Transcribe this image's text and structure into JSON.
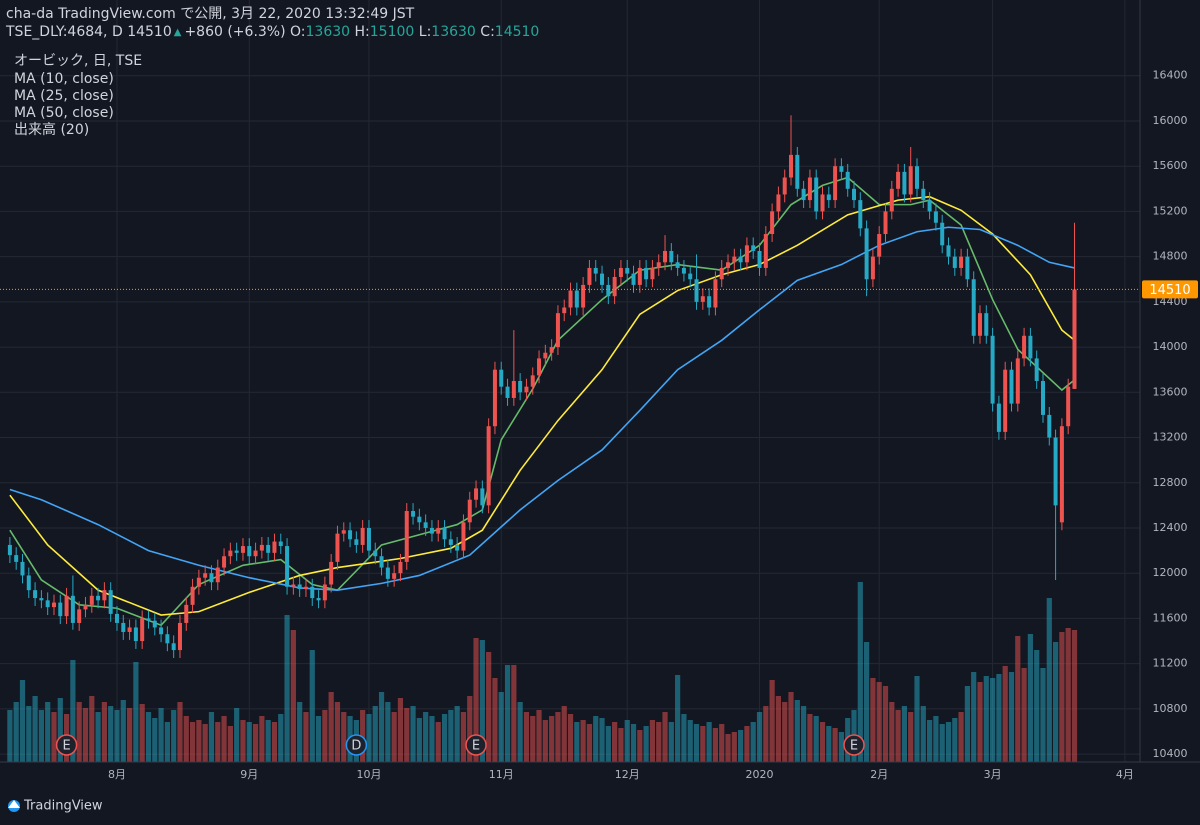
{
  "header": {
    "publisher": "cha-da TradingView.com で公開, 3月 22, 2020 13:32:49 JST",
    "symbol": "TSE_DLY:4684, D",
    "arrow": "▲",
    "change": "+860 (+6.3%)",
    "o_label": "O:",
    "h_label": "H:",
    "l_label": "L:",
    "c_label": "C:"
  },
  "footer": {
    "brand": "TradingView"
  },
  "chart_data": {
    "type": "candlestick",
    "name": "オービック, 日, TSE",
    "volume_name": "出来高 (20)",
    "up_color": "#ef5350",
    "down_color": "#25a9c5",
    "last_price_color": "#ff9800",
    "grid": true,
    "xlim": [
      -0.3,
      179.4
    ],
    "ylim": [
      10330,
      17070
    ],
    "volume_lim": [
      0,
      1000
    ],
    "yticks": [
      10400,
      10800,
      11200,
      11600,
      12000,
      12400,
      12800,
      13200,
      13600,
      14000,
      14400,
      14800,
      15200,
      15600,
      16000,
      16400
    ],
    "xticks": [
      {
        "value": 17,
        "label": "8月"
      },
      {
        "value": 38,
        "label": "9月"
      },
      {
        "value": 57,
        "label": "10月"
      },
      {
        "value": 78,
        "label": "11月"
      },
      {
        "value": 98,
        "label": "12月"
      },
      {
        "value": 119,
        "label": "2020"
      },
      {
        "value": 138,
        "label": "2月"
      },
      {
        "value": 156,
        "label": "3月"
      },
      {
        "value": 177,
        "label": "4月"
      }
    ],
    "open": [
      12250,
      12160,
      12100,
      11980,
      11850,
      11780,
      11760,
      11700,
      11740,
      11620,
      11800,
      11560,
      11680,
      11720,
      11800,
      11760,
      11850,
      11640,
      11560,
      11480,
      11520,
      11400,
      11600,
      11580,
      11520,
      11460,
      11380,
      11320,
      11560,
      11720,
      11880,
      11960,
      12000,
      11920,
      12050,
      12150,
      12200,
      12180,
      12240,
      12150,
      12200,
      12250,
      12180,
      12280,
      12240,
      11880,
      11900,
      11860,
      11880,
      11780,
      11760,
      11900,
      12100,
      12350,
      12380,
      12300,
      12250,
      12400,
      12200,
      12150,
      12050,
      11950,
      12000,
      12100,
      12550,
      12500,
      12450,
      12400,
      12350,
      12400,
      12300,
      12250,
      12200,
      12450,
      12650,
      12750,
      12600,
      13300,
      13800,
      13650,
      13550,
      13700,
      13600,
      13650,
      13750,
      13900,
      13950,
      14000,
      14300,
      14350,
      14500,
      14350,
      14550,
      14700,
      14650,
      14550,
      14450,
      14620,
      14700,
      14650,
      14550,
      14700,
      14600,
      14700,
      14750,
      14850,
      14750,
      14700,
      14650,
      14600,
      14400,
      14450,
      14350,
      14600,
      14700,
      14750,
      14800,
      14750,
      14900,
      14850,
      14700,
      15000,
      15200,
      15350,
      15500,
      15700,
      15400,
      15300,
      15500,
      15200,
      15350,
      15300,
      15600,
      15550,
      15400,
      15300,
      15050,
      14600,
      14800,
      15000,
      15200,
      15400,
      15550,
      15350,
      15600,
      15400,
      15300,
      15200,
      15100,
      14900,
      14800,
      14700,
      14800,
      14600,
      14100,
      14300,
      14100,
      13500,
      13250,
      13800,
      13500,
      13900,
      14100,
      13900,
      13700,
      13400,
      13200,
      12450,
      13300,
      13630
    ],
    "high": [
      12320,
      12230,
      12170,
      12050,
      11920,
      11850,
      11830,
      11810,
      11810,
      11870,
      11980,
      11750,
      11790,
      11870,
      11870,
      11920,
      11920,
      11710,
      11630,
      11590,
      11590,
      11670,
      11670,
      11650,
      11590,
      11530,
      11450,
      11630,
      11790,
      11950,
      12030,
      12070,
      12070,
      12120,
      12220,
      12270,
      12270,
      12310,
      12310,
      12270,
      12320,
      12320,
      12350,
      12350,
      12310,
      11970,
      11970,
      11950,
      11950,
      11850,
      11970,
      12170,
      12420,
      12450,
      12450,
      12370,
      12470,
      12470,
      12270,
      12220,
      12120,
      12070,
      12170,
      12620,
      12620,
      12570,
      12520,
      12470,
      12470,
      12470,
      12370,
      12320,
      12520,
      12720,
      12820,
      12820,
      13370,
      13870,
      13870,
      13720,
      14150,
      13770,
      13720,
      13820,
      13970,
      14020,
      14070,
      14370,
      14420,
      14570,
      14570,
      14620,
      14770,
      14770,
      14720,
      14620,
      14690,
      14770,
      14770,
      14720,
      14770,
      14770,
      14770,
      14820,
      14990,
      14920,
      14820,
      14770,
      14720,
      14820,
      14520,
      14520,
      14670,
      14770,
      14820,
      14870,
      14870,
      14970,
      14970,
      14920,
      15070,
      15270,
      15420,
      15570,
      16050,
      15770,
      15470,
      15570,
      15570,
      15420,
      15420,
      15670,
      15670,
      15620,
      15470,
      15370,
      15120,
      14870,
      15070,
      15270,
      15470,
      15620,
      15620,
      15770,
      15670,
      15470,
      15370,
      15270,
      15170,
      14970,
      14870,
      14870,
      14870,
      14670,
      14370,
      14370,
      14170,
      13570,
      13870,
      13870,
      13970,
      14170,
      14170,
      13970,
      13770,
      13470,
      13270,
      13370,
      13720,
      15100
    ],
    "low": [
      12090,
      12030,
      11910,
      11780,
      11710,
      11690,
      11630,
      11630,
      11550,
      11550,
      11500,
      11490,
      11610,
      11650,
      11690,
      11690,
      11570,
      11490,
      11410,
      11410,
      11330,
      11330,
      11510,
      11450,
      11390,
      11310,
      11250,
      11250,
      11490,
      11650,
      11810,
      11890,
      11850,
      11850,
      11980,
      12080,
      12110,
      12110,
      12080,
      12080,
      12130,
      12110,
      12110,
      12170,
      11810,
      11810,
      11790,
      11790,
      11710,
      11690,
      11690,
      11830,
      12030,
      12280,
      12230,
      12180,
      12180,
      12130,
      12080,
      11980,
      11880,
      11880,
      11930,
      12030,
      12430,
      12380,
      12330,
      12280,
      12280,
      12230,
      12180,
      12130,
      12130,
      12380,
      12580,
      12530,
      12530,
      13230,
      13580,
      13480,
      13480,
      13530,
      13530,
      13580,
      13680,
      13830,
      13880,
      13930,
      14230,
      14280,
      14280,
      14280,
      14480,
      14580,
      14480,
      14380,
      14380,
      14550,
      14580,
      14480,
      14480,
      14530,
      14530,
      14630,
      14680,
      14680,
      14630,
      14580,
      14530,
      14330,
      14330,
      14280,
      14280,
      14530,
      14630,
      14680,
      14680,
      14680,
      14780,
      14630,
      14630,
      14930,
      15130,
      15280,
      15430,
      15330,
      15230,
      15230,
      15130,
      15130,
      15230,
      15230,
      15480,
      15330,
      15230,
      14980,
      14450,
      14530,
      14730,
      14930,
      15130,
      15330,
      15280,
      15280,
      15330,
      15230,
      15130,
      15030,
      14830,
      14730,
      14630,
      14630,
      14530,
      14030,
      14030,
      14030,
      13430,
      13180,
      13180,
      13430,
      13430,
      13830,
      13830,
      13630,
      13330,
      13130,
      11940,
      12380,
      13230,
      13630
    ],
    "close": [
      12160,
      12100,
      11980,
      11850,
      11780,
      11760,
      11700,
      11740,
      11620,
      11800,
      11560,
      11680,
      11720,
      11800,
      11760,
      11850,
      11640,
      11560,
      11480,
      11520,
      11400,
      11600,
      11580,
      11520,
      11460,
      11380,
      11320,
      11560,
      11720,
      11880,
      11960,
      12000,
      11920,
      12050,
      12150,
      12200,
      12180,
      12240,
      12150,
      12200,
      12250,
      12180,
      12280,
      12240,
      11880,
      11900,
      11860,
      11880,
      11780,
      11760,
      11900,
      12100,
      12350,
      12380,
      12300,
      12250,
      12400,
      12200,
      12150,
      12050,
      11950,
      12000,
      12100,
      12550,
      12500,
      12450,
      12400,
      12350,
      12400,
      12300,
      12250,
      12200,
      12450,
      12650,
      12750,
      12600,
      13300,
      13800,
      13650,
      13550,
      13700,
      13600,
      13650,
      13750,
      13900,
      13950,
      14000,
      14300,
      14350,
      14500,
      14350,
      14550,
      14700,
      14650,
      14550,
      14450,
      14620,
      14700,
      14650,
      14550,
      14700,
      14600,
      14700,
      14750,
      14850,
      14750,
      14700,
      14650,
      14600,
      14400,
      14450,
      14350,
      14600,
      14700,
      14750,
      14800,
      14750,
      14900,
      14850,
      14700,
      15000,
      15200,
      15350,
      15500,
      15700,
      15400,
      15300,
      15500,
      15200,
      15350,
      15300,
      15600,
      15550,
      15400,
      15300,
      15050,
      14600,
      14800,
      15000,
      15200,
      15400,
      15550,
      15350,
      15600,
      15400,
      15300,
      15200,
      15100,
      14900,
      14800,
      14700,
      14800,
      14600,
      14100,
      14300,
      14100,
      13500,
      13250,
      13800,
      13500,
      13900,
      14100,
      13900,
      13700,
      13400,
      13200,
      12600,
      13300,
      13650,
      14510
    ],
    "volume": [
      260,
      300,
      410,
      280,
      330,
      260,
      300,
      250,
      320,
      240,
      510,
      300,
      270,
      330,
      250,
      300,
      280,
      260,
      310,
      270,
      500,
      290,
      250,
      220,
      270,
      200,
      260,
      300,
      230,
      200,
      210,
      190,
      250,
      200,
      230,
      180,
      270,
      210,
      200,
      190,
      230,
      210,
      200,
      240,
      735,
      660,
      300,
      250,
      560,
      230,
      260,
      350,
      300,
      250,
      230,
      210,
      260,
      240,
      280,
      350,
      300,
      250,
      320,
      270,
      280,
      220,
      250,
      230,
      200,
      240,
      260,
      280,
      250,
      330,
      620,
      610,
      550,
      420,
      350,
      485,
      485,
      300,
      250,
      230,
      260,
      210,
      230,
      250,
      280,
      240,
      200,
      210,
      190,
      230,
      220,
      180,
      200,
      170,
      210,
      190,
      160,
      180,
      210,
      200,
      250,
      200,
      435,
      240,
      210,
      190,
      180,
      200,
      170,
      190,
      140,
      150,
      160,
      180,
      200,
      250,
      280,
      410,
      330,
      300,
      350,
      310,
      280,
      240,
      230,
      200,
      180,
      170,
      150,
      220,
      260,
      900,
      600,
      420,
      400,
      380,
      300,
      260,
      280,
      250,
      430,
      280,
      210,
      230,
      190,
      200,
      220,
      250,
      380,
      450,
      400,
      430,
      420,
      440,
      480,
      450,
      630,
      470,
      640,
      560,
      470,
      820,
      600,
      650,
      670,
      660
    ],
    "series": [
      {
        "name": "MA (10, close)",
        "color": "#66bb6a",
        "x": [
          0,
          5,
          11,
          17,
          24,
          30,
          37,
          43,
          48,
          52,
          59,
          65,
          71,
          75,
          78,
          83,
          87,
          94,
          100,
          106,
          113,
          119,
          124,
          129,
          133,
          138,
          143,
          146,
          151,
          156,
          160,
          167,
          169
        ],
        "values": [
          12380,
          11940,
          11720,
          11690,
          11540,
          11900,
          12070,
          12120,
          11900,
          11850,
          12250,
          12340,
          12430,
          12560,
          13180,
          13630,
          14060,
          14420,
          14680,
          14730,
          14680,
          14900,
          15260,
          15430,
          15500,
          15260,
          15260,
          15300,
          15080,
          14420,
          13980,
          13620,
          13710
        ]
      },
      {
        "name": "MA (25, close)",
        "color": "#ffeb3b",
        "x": [
          0,
          6,
          14,
          24,
          30,
          38,
          46,
          52,
          62,
          70,
          75,
          81,
          87,
          94,
          100,
          106,
          113,
          119,
          125,
          133,
          141,
          146,
          151,
          156,
          162,
          167,
          169
        ],
        "values": [
          12690,
          12250,
          11850,
          11630,
          11660,
          11830,
          11980,
          12050,
          12130,
          12220,
          12380,
          12910,
          13350,
          13800,
          14290,
          14500,
          14640,
          14730,
          14900,
          15170,
          15300,
          15330,
          15210,
          15000,
          14640,
          14150,
          14060
        ]
      },
      {
        "name": "MA (50, close)",
        "color": "#42a5f5",
        "x": [
          0,
          5,
          14,
          22,
          30,
          38,
          46,
          52,
          59,
          65,
          73,
          81,
          87,
          94,
          100,
          106,
          113,
          119,
          125,
          132,
          138,
          144,
          149,
          154,
          160,
          165,
          169
        ],
        "values": [
          12740,
          12650,
          12430,
          12200,
          12070,
          11960,
          11870,
          11850,
          11910,
          11980,
          12160,
          12560,
          12820,
          13090,
          13440,
          13800,
          14060,
          14330,
          14590,
          14730,
          14900,
          15020,
          15060,
          15040,
          14900,
          14750,
          14700
        ]
      }
    ],
    "events": [
      {
        "label": "E",
        "x": 9,
        "color": "#ef5350"
      },
      {
        "label": "D",
        "x": 55,
        "color": "#2196f3"
      },
      {
        "label": "E",
        "x": 74,
        "color": "#ef5350"
      },
      {
        "label": "E",
        "x": 134,
        "color": "#ef5350"
      }
    ]
  }
}
